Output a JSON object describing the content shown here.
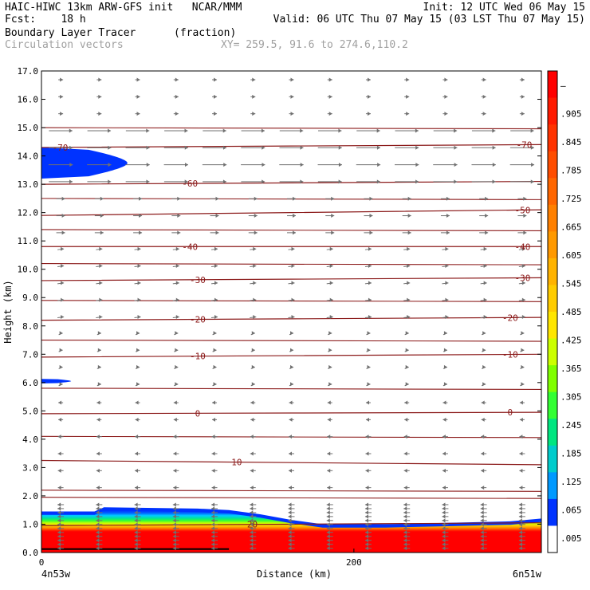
{
  "header": {
    "line1_left": "HAIC-HIWC 13km ARW-GFS init   NCAR/MMM",
    "line1_right": "Init: 12 UTC Wed 06 May 15",
    "line2_left": "Fcst:    18 h",
    "line2_right": "Valid: 06 UTC Thu 07 May 15 (03 LST Thu 07 May 15)",
    "field_name": "Boundary Layer Tracer",
    "field_units": "(fraction)",
    "overlay_name": "Circulation vectors",
    "xy_text": "XY= 259.5, 91.6 to 274.6,110.2"
  },
  "chart_data": {
    "type": "heatmap",
    "xlabel": "Distance (km)",
    "ylabel": "Height (km)",
    "xlim": [
      0,
      320
    ],
    "ylim": [
      0,
      17
    ],
    "x_ticks": [
      0,
      200
    ],
    "x_tick_labels": [
      "0",
      "200"
    ],
    "y_ticks": [
      0.0,
      1.0,
      2.0,
      3.0,
      4.0,
      5.0,
      6.0,
      7.0,
      8.0,
      9.0,
      10.0,
      11.0,
      12.0,
      13.0,
      14.0,
      15.0,
      16.0,
      17.0
    ],
    "y_tick_labels": [
      "0.0",
      "1.0",
      "2.0",
      "3.0",
      "4.0",
      "5.0",
      "6.0",
      "7.0",
      "8.0",
      "9.0",
      "10.0",
      "11.0",
      "12.0",
      "13.0",
      "14.0",
      "15.0",
      "16.0",
      "17.0"
    ],
    "left_endpoint_label": "4n53w",
    "right_endpoint_label": "6n51w",
    "colorbar": {
      "labels": [
        "–",
        ".905",
        ".845",
        ".785",
        ".725",
        ".665",
        ".605",
        ".545",
        ".485",
        ".425",
        ".365",
        ".305",
        ".245",
        ".185",
        ".125",
        ".065",
        ".005"
      ],
      "colors": [
        "#ff0000",
        "#ff1a00",
        "#ff3300",
        "#ff4d00",
        "#ff6600",
        "#ff8000",
        "#ff9900",
        "#ffb300",
        "#ffcc00",
        "#ffe600",
        "#ccff00",
        "#80ff00",
        "#33ff33",
        "#00e680",
        "#00cccc",
        "#0099ff",
        "#0033ff",
        "#ffffff"
      ]
    },
    "tracer_top_km": [
      {
        "x": 0,
        "top": 1.45
      },
      {
        "x": 34,
        "top": 1.45
      },
      {
        "x": 40,
        "top": 1.6
      },
      {
        "x": 100,
        "top": 1.55
      },
      {
        "x": 120,
        "top": 1.5
      },
      {
        "x": 140,
        "top": 1.35
      },
      {
        "x": 160,
        "top": 1.15
      },
      {
        "x": 180,
        "top": 1.0
      },
      {
        "x": 220,
        "top": 1.0
      },
      {
        "x": 260,
        "top": 1.05
      },
      {
        "x": 300,
        "top": 1.1
      },
      {
        "x": 320,
        "top": 1.2
      }
    ],
    "tracer_upper_patches": [
      {
        "x0": 0,
        "x1": 55,
        "z_center": 13.75,
        "half_depth": 0.55
      },
      {
        "x0": 0,
        "x1": 19,
        "z_center": 6.05,
        "half_depth": 0.08
      }
    ],
    "temperature_contours": [
      {
        "label": "-70",
        "z_left": 14.3,
        "z_right": 14.4,
        "label_at": [
          12,
          309
        ]
      },
      {
        "label": "-60",
        "z_left": 13.0,
        "z_right": 13.1,
        "label_at": [
          95
        ]
      },
      {
        "label": "-50",
        "z_left": 11.9,
        "z_right": 12.1,
        "label_at": [
          308
        ]
      },
      {
        "label": "-40",
        "z_left": 10.8,
        "z_right": 10.8,
        "label_at": [
          95,
          308
        ]
      },
      {
        "label": "-30",
        "z_left": 9.6,
        "z_right": 9.7,
        "label_at": [
          100,
          308
        ]
      },
      {
        "label": "-20",
        "z_left": 8.2,
        "z_right": 8.3,
        "label_at": [
          100,
          300
        ]
      },
      {
        "label": "-10",
        "z_left": 6.9,
        "z_right": 7.0,
        "label_at": [
          100,
          300
        ]
      },
      {
        "label": "0",
        "z_left": 4.9,
        "z_right": 4.95,
        "label_at": [
          100,
          300
        ]
      },
      {
        "label": "10",
        "z_left": 3.25,
        "z_right": 3.1,
        "label_at": [
          125
        ]
      },
      {
        "label": "20",
        "z_left": 0.95,
        "z_right": 1.05,
        "label_at": [
          135
        ]
      }
    ],
    "other_contour_levels_km": [
      15.0,
      12.5,
      11.4,
      10.2,
      8.9,
      7.5,
      5.8,
      4.1,
      2.2,
      1.95
    ]
  }
}
